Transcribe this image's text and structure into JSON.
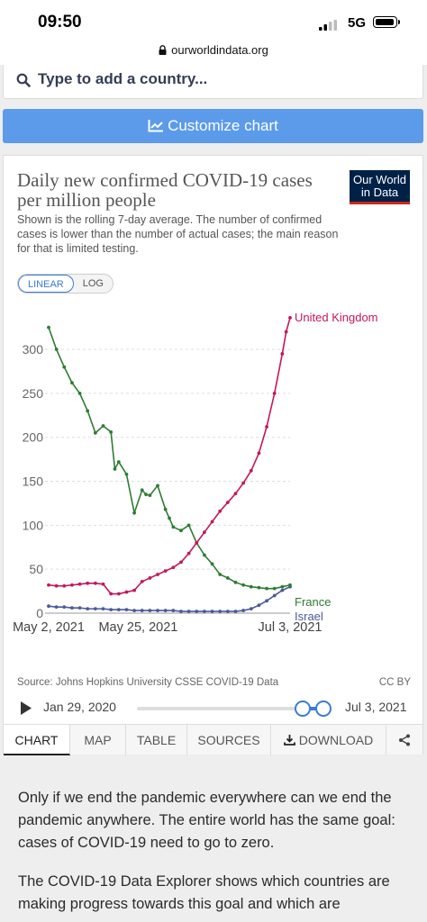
{
  "status": {
    "time": "09:50",
    "network": "5G"
  },
  "browser": {
    "url": "ourworldindata.org"
  },
  "search": {
    "placeholder": "Type to add a country..."
  },
  "customize_label": "Customize chart",
  "card": {
    "title": "Daily new confirmed COVID-19 cases per million people",
    "subtitle": "Shown is the rolling 7-day average. The number of confirmed cases is lower than the number of actual cases; the main reason for that is limited testing.",
    "logo_line1": "Our World",
    "logo_line2": "in Data",
    "scale_linear": "LINEAR",
    "scale_log": "LOG",
    "source": "Source: Johns Hopkins University CSSE COVID-19 Data",
    "license": "CC BY",
    "timeline_start": "Jan 29, 2020",
    "timeline_end": "Jul 3, 2021",
    "timeline_position": 0.98,
    "tabs": [
      "CHART",
      "MAP",
      "TABLE",
      "SOURCES",
      "DOWNLOAD"
    ]
  },
  "chart_data": {
    "type": "line",
    "x_ticks": [
      "May 2, 2021",
      "May 25, 2021",
      "Jul 3, 2021"
    ],
    "y_ticks": [
      0,
      50,
      100,
      150,
      200,
      250,
      300
    ],
    "ylim": [
      0,
      340
    ],
    "xlim": [
      0,
      62
    ],
    "grid": "horizontal dashed",
    "series": [
      {
        "name": "United Kingdom",
        "color": "#c2185b",
        "x": [
          0,
          2,
          4,
          6,
          8,
          10,
          12,
          14,
          16,
          18,
          20,
          22,
          24,
          26,
          28,
          30,
          32,
          34,
          36,
          38,
          40,
          42,
          44,
          46,
          48,
          50,
          52,
          54,
          56,
          58,
          60,
          61,
          62
        ],
        "values": [
          32,
          31,
          31,
          32,
          33,
          34,
          34,
          33,
          22,
          22,
          24,
          26,
          36,
          40,
          44,
          48,
          52,
          58,
          68,
          80,
          92,
          104,
          116,
          126,
          136,
          148,
          162,
          182,
          212,
          250,
          295,
          320,
          336
        ]
      },
      {
        "name": "France",
        "color": "#2e7d32",
        "x": [
          0,
          2,
          4,
          6,
          8,
          10,
          12,
          14,
          16,
          17,
          18,
          20,
          22,
          24,
          25,
          26,
          28,
          30,
          31,
          32,
          34,
          36,
          38,
          40,
          42,
          44,
          46,
          48,
          50,
          52,
          54,
          56,
          58,
          60,
          62
        ],
        "values": [
          325,
          300,
          280,
          262,
          250,
          230,
          205,
          213,
          206,
          164,
          172,
          158,
          114,
          140,
          135,
          134,
          145,
          118,
          108,
          98,
          94,
          100,
          80,
          66,
          56,
          44,
          40,
          35,
          32,
          30,
          29,
          28,
          28,
          30,
          32
        ]
      },
      {
        "name": "Israel",
        "color": "#4a5a9c",
        "x": [
          0,
          2,
          4,
          6,
          8,
          10,
          12,
          14,
          16,
          18,
          20,
          22,
          24,
          26,
          28,
          30,
          32,
          34,
          36,
          38,
          40,
          42,
          44,
          46,
          48,
          50,
          52,
          54,
          56,
          58,
          60,
          62
        ],
        "values": [
          8,
          7,
          7,
          6,
          6,
          5,
          5,
          5,
          4,
          4,
          4,
          3,
          3,
          3,
          3,
          3,
          3,
          2,
          2,
          2,
          2,
          2,
          2,
          2,
          2,
          3,
          5,
          9,
          14,
          20,
          26,
          30
        ]
      }
    ]
  },
  "prose": [
    "Only if we end the pandemic everywhere can we end the pandemic anywhere. The entire world has the same goal: cases of COVID-19 need to go to zero.",
    "The COVID-19 Data Explorer shows which countries are making progress towards this goal and which are"
  ]
}
